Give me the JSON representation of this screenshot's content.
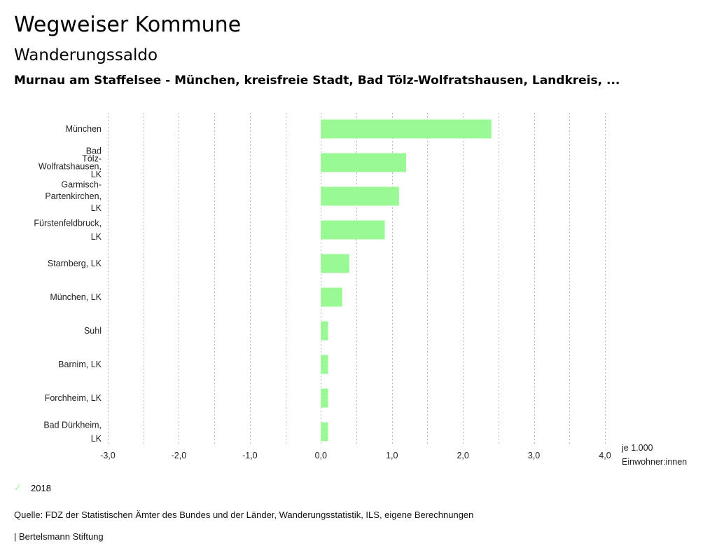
{
  "header": {
    "title": "Wegweiser Kommune",
    "subtitle": "Wanderungssaldo",
    "selection": "Murnau am Staffelsee - München, kreisfreie Stadt, Bad Tölz-Wolfratshausen, Landkreis, ..."
  },
  "chart_data": {
    "type": "bar",
    "orientation": "horizontal",
    "title": "Wanderungssaldo",
    "categories": [
      [
        "München"
      ],
      [
        "Bad",
        "Tölz-",
        "Wolfratshausen,",
        "LK"
      ],
      [
        "Garmisch-",
        "Partenkirchen,",
        "LK"
      ],
      [
        "Fürstenfeldbruck,",
        "LK"
      ],
      [
        "Starnberg, LK"
      ],
      [
        "München, LK"
      ],
      [
        "Suhl"
      ],
      [
        "Barnim, LK"
      ],
      [
        "Forchheim, LK"
      ],
      [
        "Bad Dürkheim,",
        "LK"
      ]
    ],
    "series": [
      {
        "name": "2018",
        "color": "#99f994",
        "values": [
          2.4,
          1.2,
          1.1,
          0.9,
          0.4,
          0.3,
          0.1,
          0.1,
          0.1,
          0.1
        ]
      }
    ],
    "xlim": [
      -3.0,
      4.0
    ],
    "xticks": [
      -3.0,
      -2.0,
      -1.0,
      0.0,
      1.0,
      2.0,
      3.0,
      4.0
    ],
    "xtick_labels": [
      "-3,0",
      "-2,0",
      "-1,0",
      "0,0",
      "1,0",
      "2,0",
      "3,0",
      "4,0"
    ],
    "grid_step": 0.5,
    "grid": true,
    "xlabel": [
      "je 1.000",
      "Einwohner:innen"
    ],
    "ylabel": "",
    "legend_position": "bottom-left"
  },
  "legend": {
    "items": [
      {
        "label": "2018",
        "icon": "check-icon",
        "color": "#99f994"
      }
    ]
  },
  "footer": {
    "source": "Quelle: FDZ der Statistischen Ämter des Bundes und der Länder, Wanderungsstatistik, ILS, eigene Berechnungen",
    "credit": "| Bertelsmann Stiftung"
  }
}
